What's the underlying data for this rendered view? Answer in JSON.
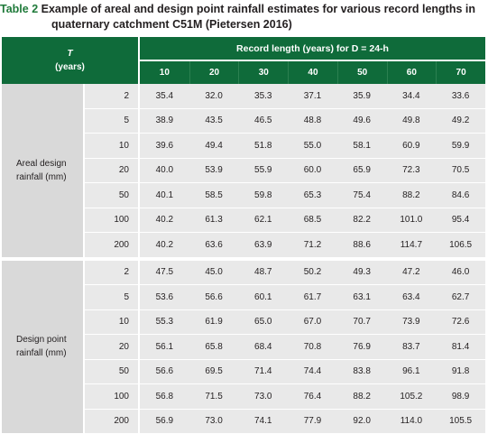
{
  "caption": {
    "label": "Table 2",
    "line1": "Example of areal and design point rainfall estimates for various record lengths in",
    "line2": "quaternary catchment C51M (Pietersen 2016)"
  },
  "header": {
    "t_symbol": "T",
    "t_unit": "(years)",
    "span_label": "Record length (years) for D = 24-h",
    "record_lengths": [
      "10",
      "20",
      "30",
      "40",
      "50",
      "60",
      "70"
    ]
  },
  "groups": [
    {
      "label_line1": "Areal design",
      "label_line2": "rainfall (mm)",
      "rows": [
        {
          "t": "2",
          "values": [
            "35.4",
            "32.0",
            "35.3",
            "37.1",
            "35.9",
            "34.4",
            "33.6"
          ]
        },
        {
          "t": "5",
          "values": [
            "38.9",
            "43.5",
            "46.5",
            "48.8",
            "49.6",
            "49.8",
            "49.2"
          ]
        },
        {
          "t": "10",
          "values": [
            "39.6",
            "49.4",
            "51.8",
            "55.0",
            "58.1",
            "60.9",
            "59.9"
          ]
        },
        {
          "t": "20",
          "values": [
            "40.0",
            "53.9",
            "55.9",
            "60.0",
            "65.9",
            "72.3",
            "70.5"
          ]
        },
        {
          "t": "50",
          "values": [
            "40.1",
            "58.5",
            "59.8",
            "65.3",
            "75.4",
            "88.2",
            "84.6"
          ]
        },
        {
          "t": "100",
          "values": [
            "40.2",
            "61.3",
            "62.1",
            "68.5",
            "82.2",
            "101.0",
            "95.4"
          ]
        },
        {
          "t": "200",
          "values": [
            "40.2",
            "63.6",
            "63.9",
            "71.2",
            "88.6",
            "114.7",
            "106.5"
          ]
        }
      ]
    },
    {
      "label_line1": "Design point",
      "label_line2": "rainfall (mm)",
      "rows": [
        {
          "t": "2",
          "values": [
            "47.5",
            "45.0",
            "48.7",
            "50.2",
            "49.3",
            "47.2",
            "46.0"
          ]
        },
        {
          "t": "5",
          "values": [
            "53.6",
            "56.6",
            "60.1",
            "61.7",
            "63.1",
            "63.4",
            "62.7"
          ]
        },
        {
          "t": "10",
          "values": [
            "55.3",
            "61.9",
            "65.0",
            "67.0",
            "70.7",
            "73.9",
            "72.6"
          ]
        },
        {
          "t": "20",
          "values": [
            "56.1",
            "65.8",
            "68.4",
            "70.8",
            "76.9",
            "83.7",
            "81.4"
          ]
        },
        {
          "t": "50",
          "values": [
            "56.6",
            "69.5",
            "71.4",
            "74.4",
            "83.8",
            "96.1",
            "91.8"
          ]
        },
        {
          "t": "100",
          "values": [
            "56.8",
            "71.5",
            "73.0",
            "76.4",
            "88.2",
            "105.2",
            "98.9"
          ]
        },
        {
          "t": "200",
          "values": [
            "56.9",
            "73.0",
            "74.1",
            "77.9",
            "92.0",
            "114.0",
            "105.5"
          ]
        }
      ]
    }
  ]
}
